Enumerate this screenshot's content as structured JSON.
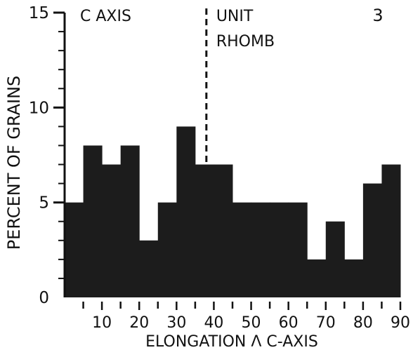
{
  "chart_data": {
    "type": "bar",
    "panel_number": "3",
    "ylabel": "PERCENT OF GRAINS",
    "xlabel": "ELONGATION Λ C-AXIS",
    "y_ticks": [
      "0",
      "5",
      "10",
      "15"
    ],
    "x_ticks": [
      "10",
      "20",
      "30",
      "40",
      "50",
      "60",
      "70",
      "80",
      "90"
    ],
    "ylim": [
      0,
      15
    ],
    "xlim": [
      0,
      90
    ],
    "bin_width": 5,
    "bins": [
      {
        "x0": 0,
        "x1": 5,
        "value": 5
      },
      {
        "x0": 5,
        "x1": 10,
        "value": 8
      },
      {
        "x0": 10,
        "x1": 15,
        "value": 7
      },
      {
        "x0": 15,
        "x1": 20,
        "value": 8
      },
      {
        "x0": 20,
        "x1": 25,
        "value": 3
      },
      {
        "x0": 25,
        "x1": 30,
        "value": 5
      },
      {
        "x0": 30,
        "x1": 35,
        "value": 9
      },
      {
        "x0": 35,
        "x1": 40,
        "value": 7
      },
      {
        "x0": 40,
        "x1": 45,
        "value": 7
      },
      {
        "x0": 45,
        "x1": 50,
        "value": 5
      },
      {
        "x0": 50,
        "x1": 55,
        "value": 5
      },
      {
        "x0": 55,
        "x1": 60,
        "value": 5
      },
      {
        "x0": 60,
        "x1": 65,
        "value": 5
      },
      {
        "x0": 65,
        "x1": 70,
        "value": 2
      },
      {
        "x0": 70,
        "x1": 75,
        "value": 4
      },
      {
        "x0": 75,
        "x1": 80,
        "value": 2
      },
      {
        "x0": 80,
        "x1": 85,
        "value": 6
      },
      {
        "x0": 85,
        "x1": 90,
        "value": 7
      }
    ],
    "annotations": {
      "c_axis": {
        "text": "C AXIS",
        "x": 0
      },
      "unit_rhomb": {
        "text": [
          "UNIT",
          "RHOMB"
        ],
        "x": 38
      },
      "dashed_line_x": 38
    },
    "colors": {
      "bars": "#1c1c1c",
      "axis": "#111111",
      "background": "#ffffff"
    },
    "grid": false,
    "legend": "none"
  }
}
